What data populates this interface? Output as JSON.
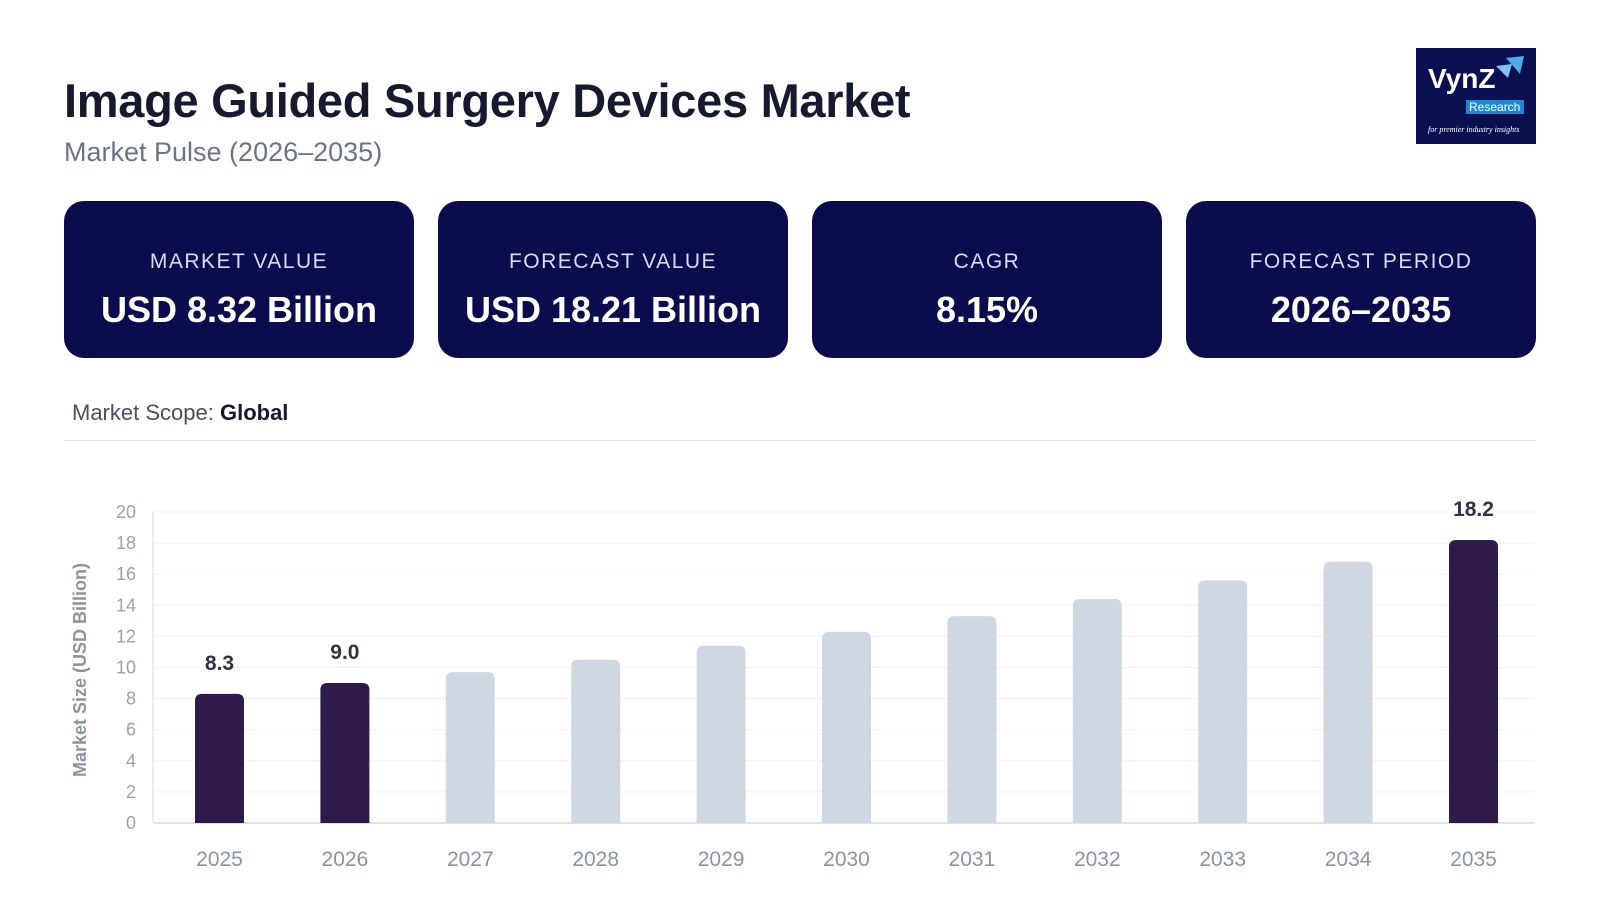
{
  "header": {
    "title": "Image Guided Surgery Devices Market",
    "subtitle": "Market Pulse (2026–2035)",
    "logo_text": "VynZ Research — for premier industry insights"
  },
  "cards": [
    {
      "label": "MARKET VALUE",
      "value": "USD 8.32 Billion"
    },
    {
      "label": "FORECAST VALUE",
      "value": "USD 18.21 Billion"
    },
    {
      "label": "CAGR",
      "value": "8.15%"
    },
    {
      "label": "FORECAST PERIOD",
      "value": "2026–2035"
    }
  ],
  "scope": {
    "label": "Market Scope:",
    "value": "Global"
  },
  "colors": {
    "card_bg": "#0a0c4e",
    "highlight_bar": "#2e1b4b",
    "bar": "#cfd7e3"
  },
  "chart_data": {
    "type": "bar",
    "title": "",
    "xlabel": "",
    "ylabel": "Market Size (USD Billion)",
    "ylim": [
      0,
      20
    ],
    "yticks": [
      0,
      2,
      4,
      6,
      8,
      10,
      12,
      14,
      16,
      18,
      20
    ],
    "grid": true,
    "categories": [
      "2025",
      "2026",
      "2027",
      "2028",
      "2029",
      "2030",
      "2031",
      "2032",
      "2033",
      "2034",
      "2035"
    ],
    "values": [
      8.3,
      9.0,
      9.7,
      10.5,
      11.4,
      12.3,
      13.3,
      14.4,
      15.6,
      16.8,
      18.2
    ],
    "highlighted": [
      true,
      true,
      false,
      false,
      false,
      false,
      false,
      false,
      false,
      false,
      true
    ],
    "data_labels": [
      "8.3",
      "9.0",
      "",
      "",
      "",
      "",
      "",
      "",
      "",
      "",
      "18.2"
    ]
  }
}
